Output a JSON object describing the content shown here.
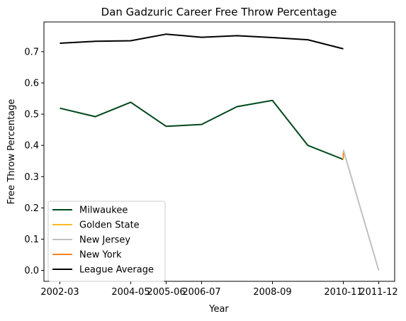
{
  "chart_data": {
    "type": "line",
    "title": "Dan Gadzuric Career Free Throw Percentage",
    "xlabel": "Year",
    "ylabel": "Free Throw Percentage",
    "x": [
      "2002-03",
      "2003-04",
      "2004-05",
      "2005-06",
      "2006-07",
      "2007-08",
      "2008-09",
      "2009-10",
      "2010-11",
      "2011-12"
    ],
    "x_tick_labels": [
      "2002-03",
      "2004-05",
      "2005-06",
      "2006-07",
      "2008-09",
      "2010-11",
      "2011-12"
    ],
    "x_tick_positions": [
      "2002-03",
      "2004-05",
      "2005-06",
      "2006-07",
      "2008-09",
      "2010-11",
      "2011-12"
    ],
    "ylim": [
      -0.035,
      0.795
    ],
    "y_ticks": [
      "0.0",
      "0.1",
      "0.2",
      "0.3",
      "0.4",
      "0.5",
      "0.6",
      "0.7"
    ],
    "grid": false,
    "legend_position": "lower-left",
    "series": [
      {
        "name": "Milwaukee",
        "color": "#00471B",
        "points": [
          [
            "2002-03",
            0.519
          ],
          [
            "2003-04",
            0.492
          ],
          [
            "2004-05",
            0.538
          ],
          [
            "2005-06",
            0.461
          ],
          [
            "2006-07",
            0.467
          ],
          [
            "2007-08",
            0.524
          ],
          [
            "2008-09",
            0.544
          ],
          [
            "2009-10",
            0.4
          ],
          [
            "2010-11",
            0.355
          ]
        ]
      },
      {
        "name": "Golden State",
        "color": "#FDB927",
        "points": [
          [
            "2010-11",
            0.355
          ],
          [
            "2010-11",
            0.38
          ]
        ]
      },
      {
        "name": "New Jersey",
        "color": "#C0C0C0",
        "points": [
          [
            "2010-11",
            0.386
          ],
          [
            "2011-12",
            0.0
          ]
        ]
      },
      {
        "name": "New York",
        "color": "#F58426",
        "points": [
          [
            "2010-11",
            0.36
          ],
          [
            "2010-11",
            0.375
          ]
        ]
      },
      {
        "name": "League Average",
        "color": "#000000",
        "points": [
          [
            "2002-03",
            0.727
          ],
          [
            "2003-04",
            0.733
          ],
          [
            "2004-05",
            0.735
          ],
          [
            "2005-06",
            0.756
          ],
          [
            "2006-07",
            0.746
          ],
          [
            "2007-08",
            0.751
          ],
          [
            "2008-09",
            0.745
          ],
          [
            "2009-10",
            0.738
          ],
          [
            "2010-11",
            0.709
          ]
        ]
      }
    ]
  }
}
